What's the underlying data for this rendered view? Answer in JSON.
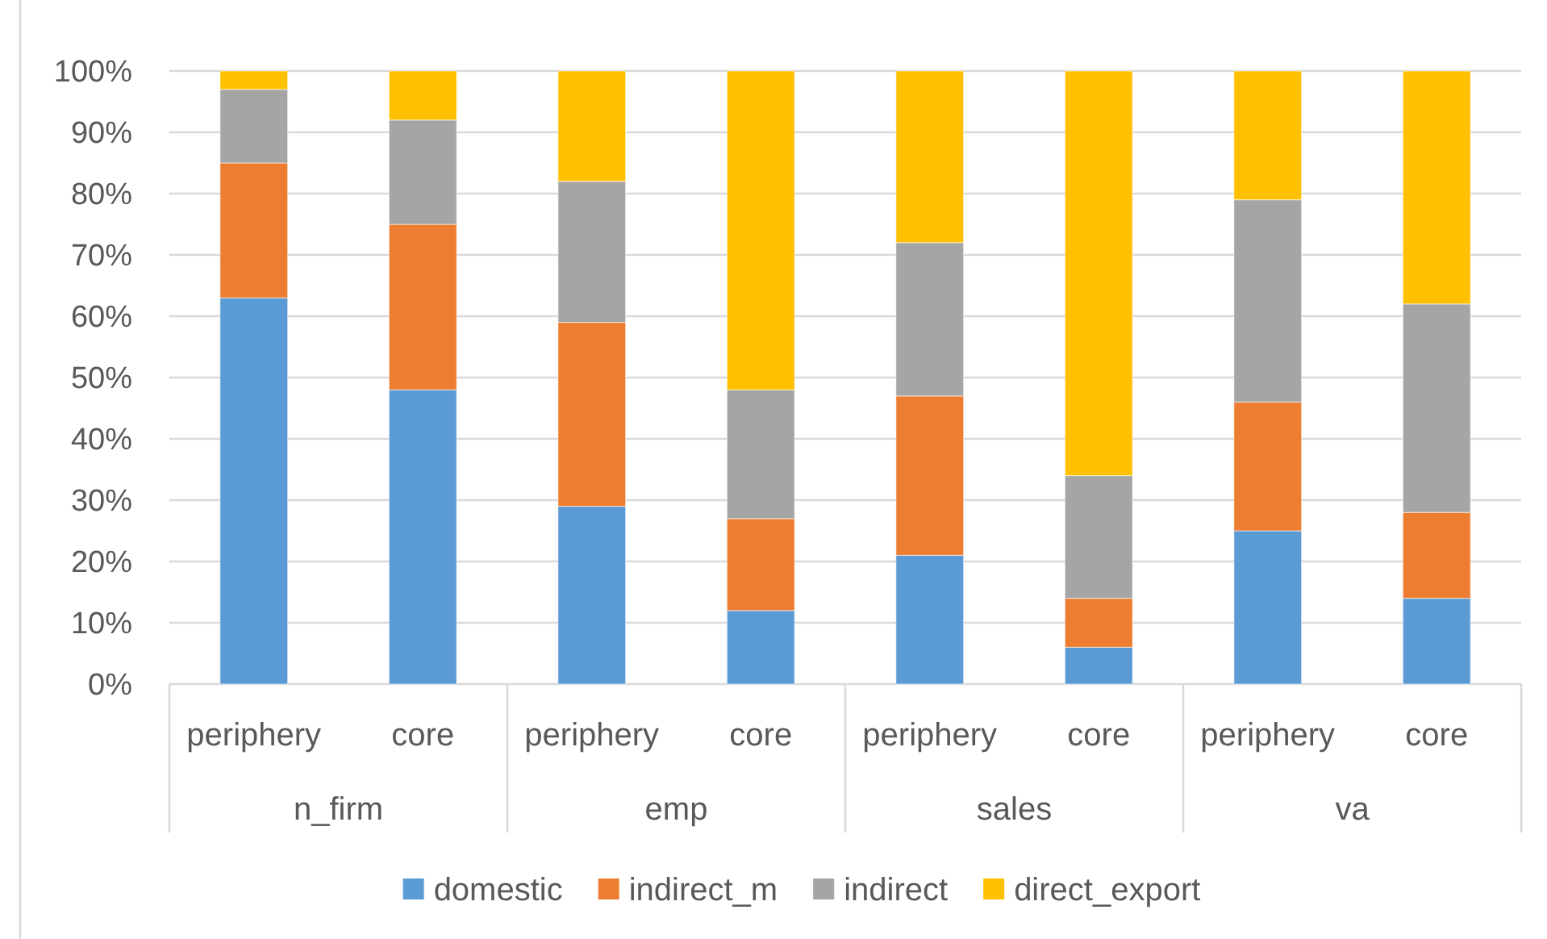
{
  "chart_data": {
    "type": "bar",
    "stacked": true,
    "categories": [
      "periphery",
      "core",
      "periphery",
      "core",
      "periphery",
      "core",
      "periphery",
      "core"
    ],
    "annotations": [
      "n_firm",
      "emp",
      "sales",
      "va"
    ],
    "series": [
      {
        "name": "domestic",
        "color": "#5b9bd5",
        "values": [
          63,
          48,
          29,
          12,
          21,
          6,
          25,
          14
        ]
      },
      {
        "name": "indirect_m",
        "color": "#ed7d31",
        "values": [
          22,
          27,
          30,
          15,
          26,
          8,
          21,
          14
        ]
      },
      {
        "name": "indirect",
        "color": "#a5a5a5",
        "values": [
          12,
          17,
          23,
          21,
          25,
          20,
          33,
          34
        ]
      },
      {
        "name": "direct_export",
        "color": "#ffc000",
        "values": [
          3,
          8,
          18,
          52,
          28,
          66,
          21,
          38
        ]
      }
    ],
    "ylim": [
      0,
      100
    ],
    "yticks": [
      {
        "value": 0,
        "label": "0%"
      },
      {
        "value": 10,
        "label": "10%"
      },
      {
        "value": 20,
        "label": "20%"
      },
      {
        "value": 30,
        "label": "30%"
      },
      {
        "value": 40,
        "label": "40%"
      },
      {
        "value": 50,
        "label": "50%"
      },
      {
        "value": 60,
        "label": "60%"
      },
      {
        "value": 70,
        "label": "70%"
      },
      {
        "value": 80,
        "label": "80%"
      },
      {
        "value": 90,
        "label": "90%"
      },
      {
        "value": 100,
        "label": "100%"
      }
    ],
    "grid": "y",
    "legend": "bottom"
  }
}
